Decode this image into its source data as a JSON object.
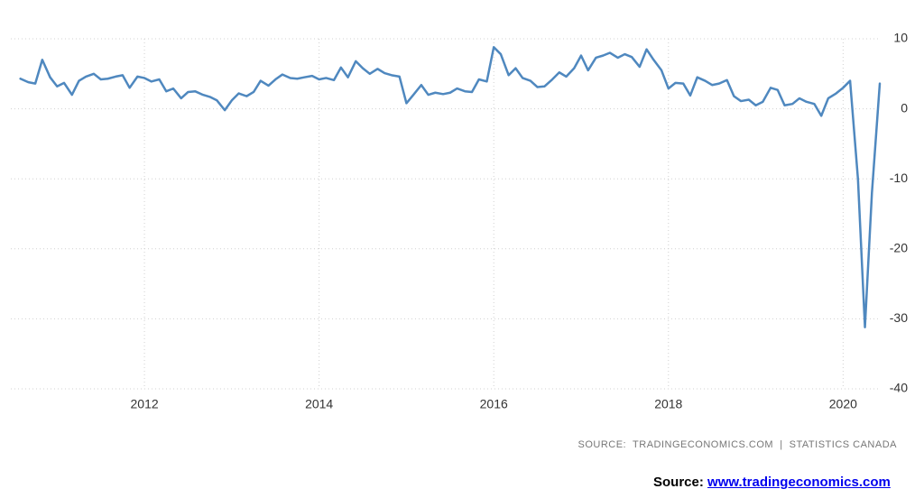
{
  "chart_data": {
    "type": "line",
    "x": [
      2010.58,
      2010.67,
      2010.75,
      2010.83,
      2010.92,
      2011.0,
      2011.08,
      2011.17,
      2011.25,
      2011.33,
      2011.42,
      2011.5,
      2011.58,
      2011.67,
      2011.75,
      2011.83,
      2011.92,
      2012.0,
      2012.08,
      2012.17,
      2012.25,
      2012.33,
      2012.42,
      2012.5,
      2012.58,
      2012.67,
      2012.75,
      2012.83,
      2012.92,
      2013.0,
      2013.08,
      2013.17,
      2013.25,
      2013.33,
      2013.42,
      2013.5,
      2013.58,
      2013.67,
      2013.75,
      2013.83,
      2013.92,
      2014.0,
      2014.08,
      2014.17,
      2014.25,
      2014.33,
      2014.42,
      2014.5,
      2014.58,
      2014.67,
      2014.75,
      2014.83,
      2014.92,
      2015.0,
      2015.08,
      2015.17,
      2015.25,
      2015.33,
      2015.42,
      2015.5,
      2015.58,
      2015.67,
      2015.75,
      2015.83,
      2015.92,
      2016.0,
      2016.08,
      2016.17,
      2016.25,
      2016.33,
      2016.42,
      2016.5,
      2016.58,
      2016.67,
      2016.75,
      2016.83,
      2016.92,
      2017.0,
      2017.08,
      2017.17,
      2017.25,
      2017.33,
      2017.42,
      2017.5,
      2017.58,
      2017.67,
      2017.75,
      2017.83,
      2017.92,
      2018.0,
      2018.08,
      2018.17,
      2018.25,
      2018.33,
      2018.42,
      2018.5,
      2018.58,
      2018.67,
      2018.75,
      2018.83,
      2018.92,
      2019.0,
      2019.08,
      2019.17,
      2019.25,
      2019.33,
      2019.42,
      2019.5,
      2019.58,
      2019.67,
      2019.75,
      2019.83,
      2019.92,
      2020.0,
      2020.08,
      2020.17,
      2020.25,
      2020.33,
      2020.42
    ],
    "series": [
      {
        "color": "#4f88bf",
        "values": [
          4.3,
          3.8,
          3.6,
          7.0,
          4.5,
          3.2,
          3.7,
          2.0,
          4.0,
          4.6,
          5.0,
          4.2,
          4.3,
          4.6,
          4.8,
          3.0,
          4.6,
          4.4,
          3.9,
          4.2,
          2.5,
          2.9,
          1.5,
          2.4,
          2.5,
          2.0,
          1.7,
          1.2,
          -0.2,
          1.2,
          2.2,
          1.8,
          2.4,
          4.0,
          3.3,
          4.2,
          4.9,
          4.4,
          4.3,
          4.5,
          4.7,
          4.2,
          4.4,
          4.1,
          5.9,
          4.5,
          6.8,
          5.8,
          5.0,
          5.7,
          5.1,
          4.8,
          4.6,
          0.8,
          2.0,
          3.4,
          2.0,
          2.3,
          2.1,
          2.3,
          2.9,
          2.5,
          2.4,
          4.2,
          3.9,
          8.8,
          7.8,
          4.8,
          5.8,
          4.4,
          4.0,
          3.1,
          3.2,
          4.2,
          5.2,
          4.6,
          5.8,
          7.6,
          5.5,
          7.3,
          7.6,
          8.0,
          7.3,
          7.8,
          7.4,
          6.0,
          8.5,
          7.0,
          5.5,
          2.9,
          3.7,
          3.6,
          1.9,
          4.5,
          4.0,
          3.4,
          3.6,
          4.1,
          1.8,
          1.1,
          1.3,
          0.5,
          1.0,
          3.0,
          2.7,
          0.5,
          0.7,
          1.5,
          1.0,
          0.7,
          -1.0,
          1.5,
          2.2,
          3.0,
          4.0,
          -10,
          -31.2,
          -12,
          3.6
        ]
      }
    ],
    "xlim": [
      2010.47,
      2020.42
    ],
    "xticks": [
      2012,
      2014,
      2016,
      2018,
      2020
    ],
    "ylim": [
      -40,
      10
    ],
    "yticks": [
      10,
      0,
      -10,
      -20,
      -30,
      -40
    ],
    "grid": true,
    "source": "SOURCE:  TRADINGECONOMICS.COM  |  STATISTICS CANADA"
  },
  "footer": {
    "label": "Source:",
    "link": "www.tradingeconomics.com"
  }
}
